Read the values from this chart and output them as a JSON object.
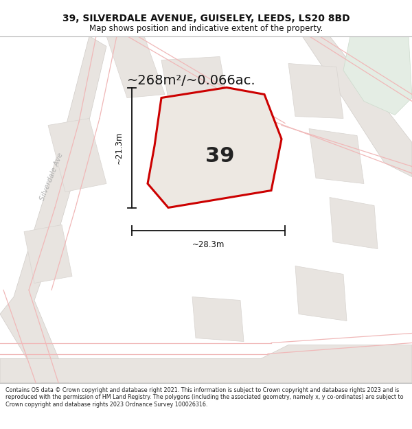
{
  "title_line1": "39, SILVERDALE AVENUE, GUISELEY, LEEDS, LS20 8BD",
  "title_line2": "Map shows position and indicative extent of the property.",
  "footer_text": "Contains OS data © Crown copyright and database right 2021. This information is subject to Crown copyright and database rights 2023 and is reproduced with the permission of HM Land Registry. The polygons (including the associated geometry, namely x, y co-ordinates) are subject to Crown copyright and database rights 2023 Ordnance Survey 100026316.",
  "area_label": "~268m²/~0.066ac.",
  "number_label": "39",
  "dim_width_label": "~28.3m",
  "dim_height_label": "~21.3m",
  "street_label": "Silverdale Ave",
  "map_bg": "#f0eeea",
  "red_border": "#cc0000",
  "dim_line_color": "#111111",
  "title_color": "#111111",
  "footer_color": "#222222",
  "road_pink": "#f0b8b8",
  "building_fill": "#e8e4e0",
  "building_edge": "#d8d4d0",
  "green_fill": "#e4ede4",
  "green_edge": "#ccdacc",
  "road_fill": "#e8e4e0",
  "prop_fill": "#ede8e2"
}
